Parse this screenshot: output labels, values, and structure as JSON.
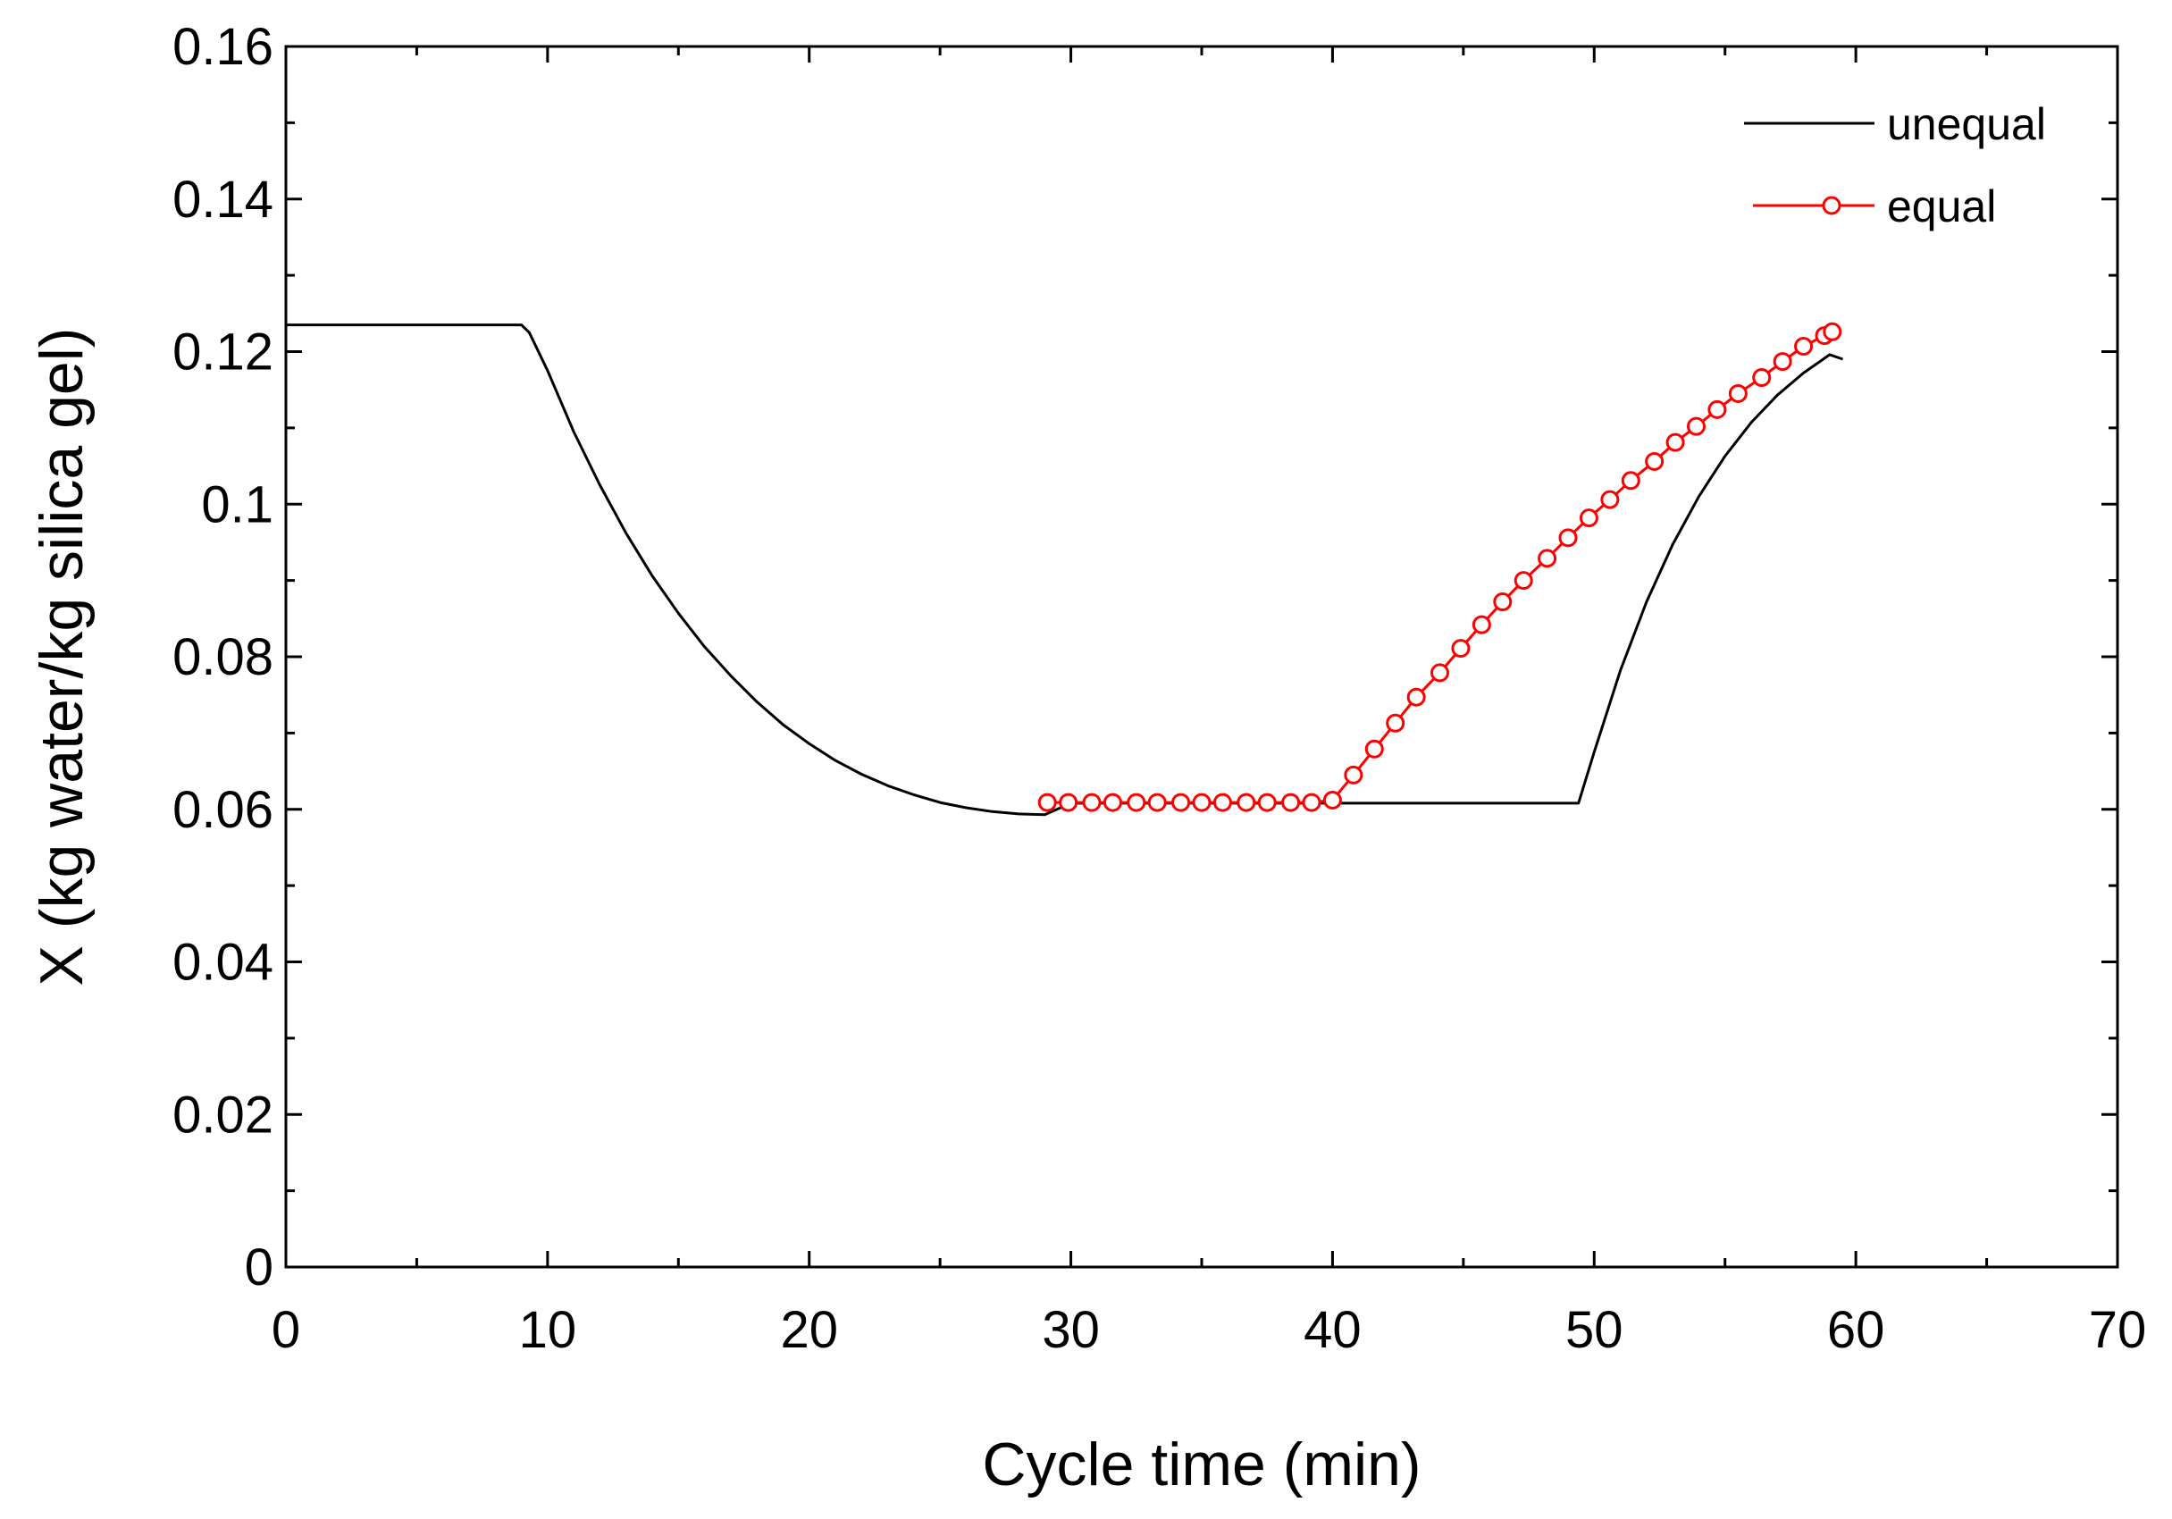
{
  "chart_data": {
    "type": "line",
    "xlabel": "Cycle time (min)",
    "ylabel": "X (kg water/kg silica gel)",
    "xlim": [
      0,
      70
    ],
    "ylim": [
      0,
      0.16
    ],
    "xticks": [
      0,
      10,
      20,
      30,
      40,
      50,
      60,
      70
    ],
    "xtick_labels": [
      "0",
      "10",
      "20",
      "30",
      "40",
      "50",
      "60",
      "70"
    ],
    "yticks": [
      0,
      0.02,
      0.04,
      0.06,
      0.08,
      0.1,
      0.12,
      0.14,
      0.16
    ],
    "ytick_labels": [
      "0",
      "0.02",
      "0.04",
      "0.06",
      "0.08",
      "0.1",
      "0.12",
      "0.14",
      "0.16"
    ],
    "legend_position": "top-right",
    "series": [
      {
        "name": "unequal",
        "color": "#000000",
        "marker": "none",
        "x": [
          0,
          9,
          9.3,
          10,
          11,
          12,
          13,
          14,
          15,
          16,
          17,
          18,
          19,
          20,
          21,
          22,
          23,
          24,
          25,
          26,
          27,
          28,
          29,
          30,
          35,
          40,
          45,
          49.4,
          50,
          51,
          52,
          53,
          54,
          55,
          56,
          57,
          58,
          59,
          59.5
        ],
        "y": [
          0.1235,
          0.1235,
          0.1225,
          0.1175,
          0.1095,
          0.1025,
          0.0962,
          0.0906,
          0.0857,
          0.0813,
          0.0775,
          0.0741,
          0.0711,
          0.0686,
          0.0664,
          0.0646,
          0.0631,
          0.0619,
          0.0609,
          0.0602,
          0.0597,
          0.0594,
          0.0593,
          0.0608,
          0.0608,
          0.0608,
          0.0608,
          0.0608,
          0.0675,
          0.0782,
          0.0872,
          0.0947,
          0.101,
          0.1063,
          0.1107,
          0.1143,
          0.1172,
          0.1196,
          0.119
        ]
      },
      {
        "name": "equal",
        "color": "#ff0000",
        "marker": "open-circle",
        "x": [
          29.1,
          29.9,
          30.8,
          31.6,
          32.5,
          33.3,
          34.2,
          35.0,
          35.8,
          36.7,
          37.5,
          38.4,
          39.2,
          40.0,
          40.8,
          41.6,
          42.4,
          43.2,
          44.1,
          44.9,
          45.7,
          46.5,
          47.3,
          48.2,
          49.0,
          49.8,
          50.6,
          51.4,
          52.3,
          53.1,
          53.9,
          54.7,
          55.5,
          56.4,
          57.2,
          58.0,
          58.8,
          59.1,
          59.4
        ],
        "y": [
          0.0609,
          0.0609,
          0.0609,
          0.0609,
          0.0609,
          0.0609,
          0.0609,
          0.0609,
          0.0609,
          0.0609,
          0.0609,
          0.0609,
          0.0609,
          0.0612,
          0.0645,
          0.0679,
          0.0713,
          0.0747,
          0.0779,
          0.0811,
          0.0842,
          0.0872,
          0.09,
          0.0929,
          0.0956,
          0.0982,
          0.1006,
          0.1031,
          0.1056,
          0.1081,
          0.1102,
          0.1124,
          0.1145,
          0.1166,
          0.1187,
          0.1207,
          0.1221,
          0.1226,
          0.1232
        ]
      }
    ]
  }
}
